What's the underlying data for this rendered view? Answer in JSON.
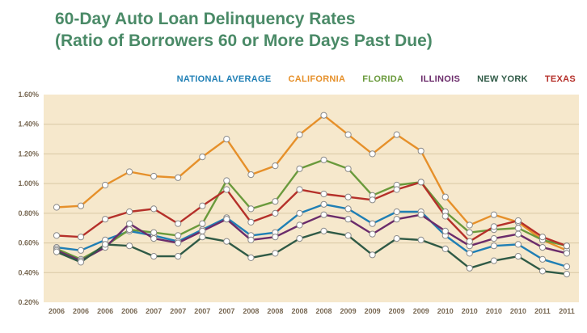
{
  "chart_data": {
    "type": "line",
    "title": "60-Day Auto Loan Delinquency Rates",
    "subtitle": "(Ratio of Borrowers 60 or More Days Past Due)",
    "xlabel": "",
    "ylabel": "",
    "ylim": [
      0.2,
      1.6
    ],
    "y_ticks": [
      "0.20%",
      "0.40%",
      "0.60%",
      "0.80%",
      "1.00%",
      "1.20%",
      "1.40%",
      "1.60%"
    ],
    "x": [
      "2006",
      "2006",
      "2006",
      "2006",
      "2007",
      "2007",
      "2007",
      "2007",
      "2008",
      "2008",
      "2008",
      "2008",
      "2009",
      "2009",
      "2009",
      "2009",
      "2010",
      "2010",
      "2010",
      "2010",
      "2011",
      "2011"
    ],
    "grid": true,
    "legend_position": "top-right",
    "background_color": "#f6e8cc",
    "series": [
      {
        "name": "NATIONAL AVERAGE",
        "color": "#1f7fb5",
        "values": [
          0.57,
          0.55,
          0.62,
          0.68,
          0.65,
          0.61,
          0.69,
          0.77,
          0.65,
          0.67,
          0.8,
          0.86,
          0.83,
          0.73,
          0.81,
          0.81,
          0.65,
          0.53,
          0.58,
          0.59,
          0.49,
          0.44
        ]
      },
      {
        "name": "CALIFORNIA",
        "color": "#e6902a",
        "values": [
          0.84,
          0.85,
          0.99,
          1.08,
          1.05,
          1.04,
          1.18,
          1.3,
          1.06,
          1.12,
          1.33,
          1.46,
          1.33,
          1.2,
          1.33,
          1.22,
          0.91,
          0.72,
          0.79,
          0.74,
          0.62,
          0.55
        ]
      },
      {
        "name": "FLORIDA",
        "color": "#6a9a3c",
        "values": [
          0.56,
          0.49,
          0.58,
          0.69,
          0.67,
          0.65,
          0.73,
          1.02,
          0.83,
          0.88,
          1.1,
          1.16,
          1.1,
          0.92,
          0.99,
          1.01,
          0.81,
          0.67,
          0.69,
          0.7,
          0.62,
          0.58
        ]
      },
      {
        "name": "ILLINOIS",
        "color": "#6b2c6b",
        "values": [
          0.55,
          0.48,
          0.57,
          0.73,
          0.63,
          0.6,
          0.68,
          0.76,
          0.62,
          0.64,
          0.72,
          0.79,
          0.76,
          0.66,
          0.76,
          0.79,
          0.68,
          0.58,
          0.63,
          0.66,
          0.57,
          0.53
        ]
      },
      {
        "name": "NEW YORK",
        "color": "#2f5a46",
        "values": [
          0.54,
          0.47,
          0.59,
          0.58,
          0.51,
          0.51,
          0.64,
          0.61,
          0.5,
          0.53,
          0.63,
          0.68,
          0.65,
          0.52,
          0.63,
          0.62,
          0.56,
          0.43,
          0.48,
          0.51,
          0.41,
          0.39
        ]
      },
      {
        "name": "TEXAS",
        "color": "#b5302a",
        "values": [
          0.65,
          0.64,
          0.76,
          0.81,
          0.83,
          0.73,
          0.85,
          0.96,
          0.74,
          0.8,
          0.96,
          0.93,
          0.91,
          0.89,
          0.96,
          1.01,
          0.78,
          0.61,
          0.71,
          0.75,
          0.64,
          0.58
        ]
      }
    ]
  }
}
